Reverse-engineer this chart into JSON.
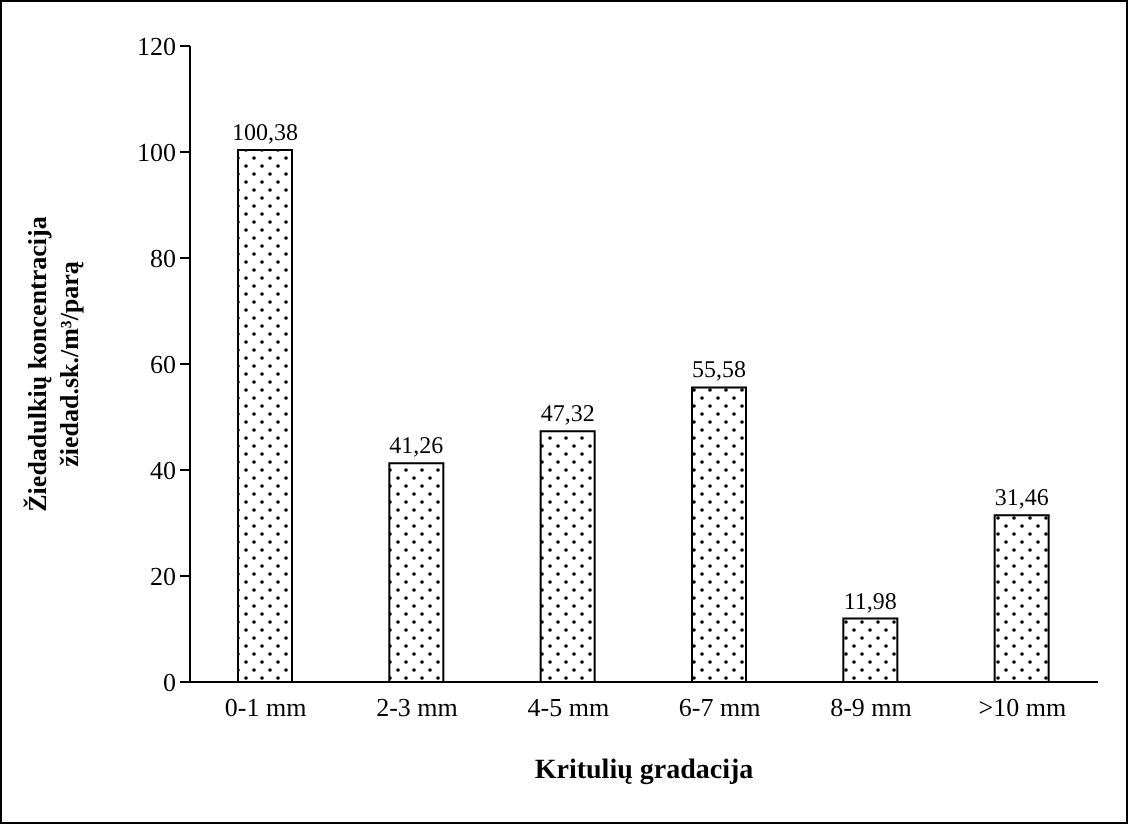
{
  "chart_data": {
    "type": "bar",
    "xlabel": "Kritulių gradacija",
    "ylabel": "Žiedadulkių koncentracija\nžiedad.sk./m³/parą",
    "categories": [
      "0-1 mm",
      "2-3 mm",
      "4-5 mm",
      "6-7 mm",
      "8-9 mm",
      ">10 mm"
    ],
    "values": [
      100.38,
      41.26,
      47.32,
      55.58,
      11.98,
      31.46
    ],
    "value_labels": [
      "100,38",
      "41,26",
      "47,32",
      "55,58",
      "11,98",
      "31,46"
    ],
    "color": "#000000",
    "ylim": [
      0,
      120
    ],
    "yticks": [
      0,
      20,
      40,
      60,
      80,
      100,
      120
    ],
    "grid": false,
    "legend": false
  }
}
